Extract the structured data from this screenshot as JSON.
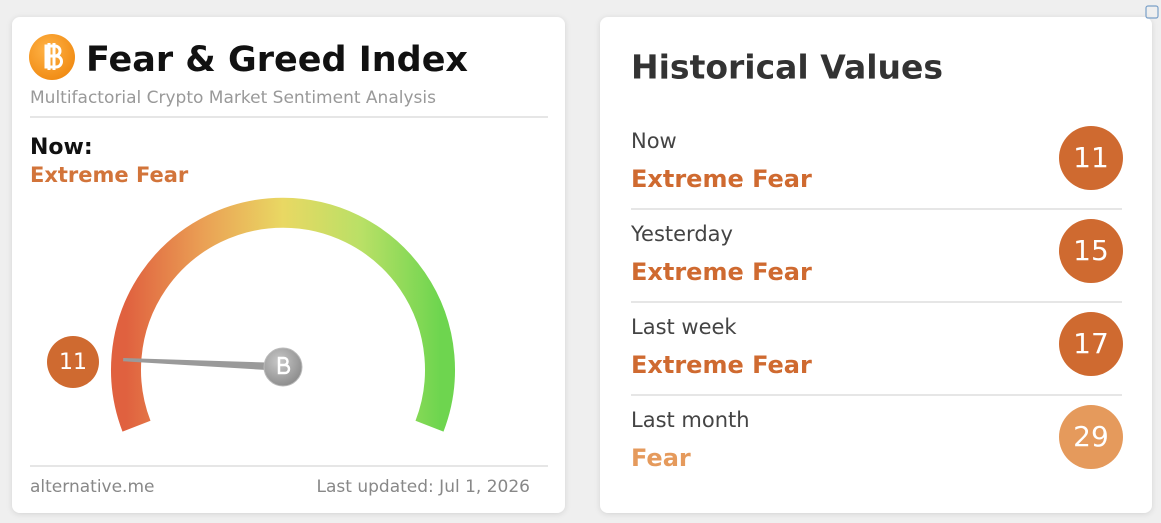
{
  "header": {
    "title": "Fear & Greed Index",
    "subtitle": "Multifactorial Crypto Market Sentiment Analysis"
  },
  "now": {
    "label": "Now:",
    "status": "Extreme Fear",
    "color": "#d2743a"
  },
  "gauge": {
    "value": 11,
    "color": "#cf6a30"
  },
  "footer": {
    "source": "alternative.me",
    "updated": "Last updated: Jul 1, 2026"
  },
  "historical": {
    "title": "Historical Values",
    "rows": [
      {
        "label": "Now",
        "status": "Extreme Fear",
        "value": 11,
        "color": "#cf6a30"
      },
      {
        "label": "Yesterday",
        "status": "Extreme Fear",
        "value": 15,
        "color": "#cf6a30"
      },
      {
        "label": "Last week",
        "status": "Extreme Fear",
        "value": 17,
        "color": "#cf6a30"
      },
      {
        "label": "Last month",
        "status": "Fear",
        "value": 29,
        "color": "#e59a5c"
      }
    ]
  }
}
